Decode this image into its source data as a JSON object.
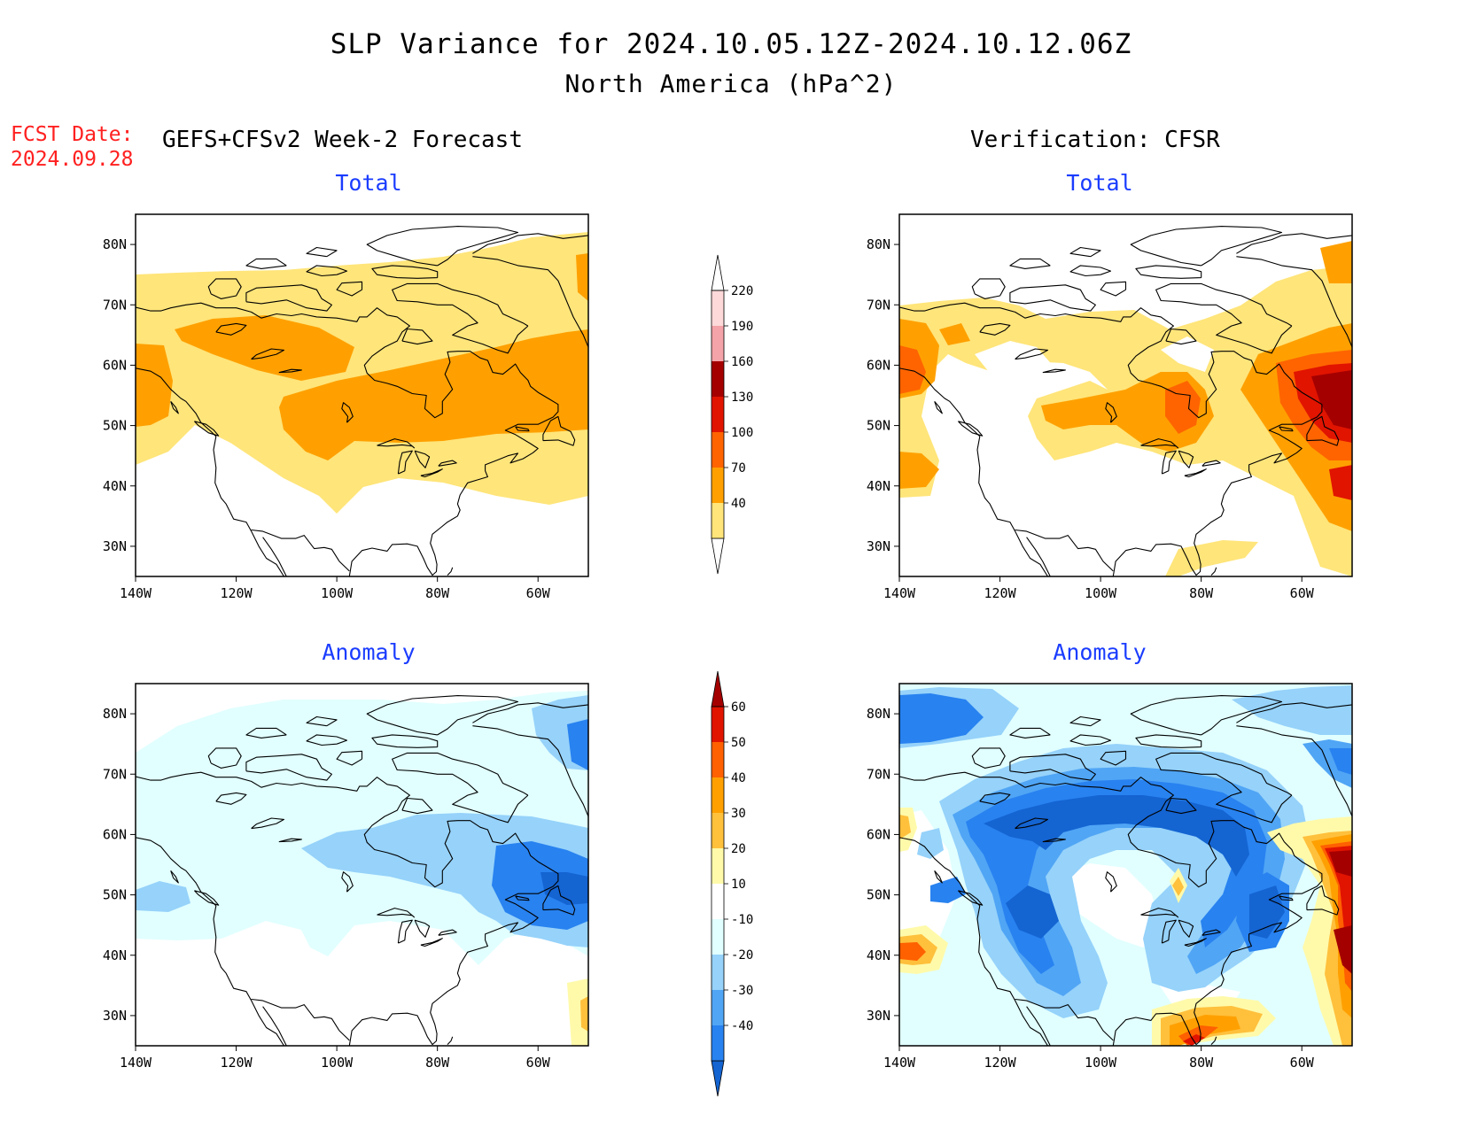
{
  "title": {
    "line1": "SLP Variance for 2024.10.05.12Z-2024.10.12.06Z",
    "line2": "North America (hPa^2)"
  },
  "fcst_date": {
    "label": "FCST Date:",
    "value": "2024.09.28"
  },
  "columns": {
    "forecast": "GEFS+CFSv2 Week-2 Forecast",
    "verification": "Verification: CFSR"
  },
  "panels": {
    "forecast_total": "Total",
    "verification_total": "Total",
    "forecast_anomaly": "Anomaly",
    "verification_anomaly": "Anomaly"
  },
  "axes": {
    "lon_labels": [
      "140W",
      "120W",
      "100W",
      "80W",
      "60W"
    ],
    "lat_labels": [
      "30N",
      "40N",
      "50N",
      "60N",
      "70N",
      "80N"
    ],
    "lon_values": [
      -140,
      -120,
      -100,
      -80,
      -60
    ],
    "lat_values": [
      30,
      40,
      50,
      60,
      70,
      80
    ],
    "lon_range": [
      -140,
      -50
    ],
    "lat_range": [
      25,
      85
    ]
  },
  "colorbars": {
    "total": {
      "labels": [
        "40",
        "70",
        "100",
        "130",
        "160",
        "190",
        "220"
      ],
      "colors": [
        "#ffffff",
        "#ffe57a",
        "#ffa000",
        "#ff6400",
        "#e11400",
        "#a50000",
        "#f4a3a8",
        "#fdd9d9",
        "#ffffff"
      ]
    },
    "anomaly": {
      "labels": [
        "-40",
        "-30",
        "-20",
        "-10",
        "10",
        "20",
        "30",
        "40",
        "50",
        "60"
      ],
      "colors": [
        "#1464d2",
        "#2882f0",
        "#50a5f5",
        "#96d2fa",
        "#e1ffff",
        "#ffffff",
        "#fffaaa",
        "#ffc03c",
        "#ffa000",
        "#ff6000",
        "#e11400",
        "#a50000"
      ]
    }
  },
  "colors": {
    "title_blue": "#1a3cff",
    "fcst_red": "#ff2020"
  }
}
